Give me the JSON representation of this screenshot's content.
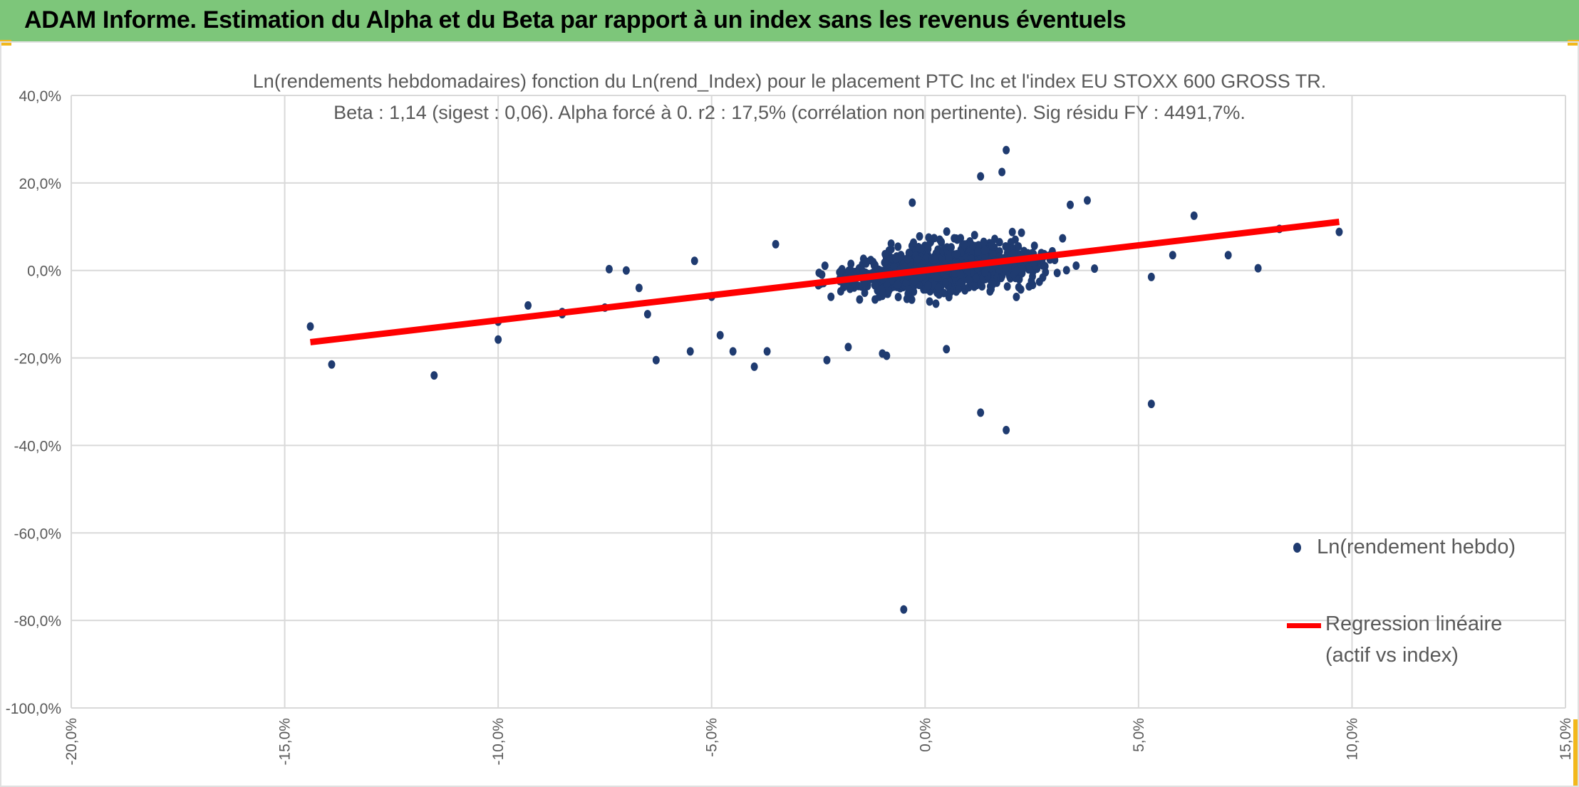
{
  "banner": {
    "title": "ADAM Informe. Estimation du Alpha et du Beta par rapport à un index sans les revenus éventuels",
    "bg_color": "#7dc67a",
    "corner_color": "#f2b81c"
  },
  "chart_data": {
    "type": "scatter",
    "title": "Ln(rendements hebdomadaires) fonction du Ln(rend_Index) pour le placement PTC Inc et l'index EU STOXX 600 GROSS TR.",
    "subtitle": "Beta : 1,14 (sigest : 0,06). Alpha forcé à 0. r2 : 17,5% (corrélation non pertinente). Sig résidu FY : 4491,7%.",
    "xlabel": "",
    "ylabel": "",
    "xlim": [
      -0.2,
      0.15
    ],
    "ylim": [
      -1.0,
      0.4
    ],
    "x_ticks": [
      -0.2,
      -0.15,
      -0.1,
      -0.05,
      0.0,
      0.05,
      0.1,
      0.15
    ],
    "x_tick_labels": [
      "-20,0%",
      "-15,0%",
      "-10,0%",
      "-5,0%",
      "0,0%",
      "5,0%",
      "10,0%",
      "15,0%"
    ],
    "y_ticks": [
      0.4,
      0.2,
      0.0,
      -0.2,
      -0.4,
      -0.6,
      -0.8,
      -1.0
    ],
    "y_tick_labels": [
      "40,0%",
      "20,0%",
      "0,0%",
      "-20,0%",
      "-40,0%",
      "-60,0%",
      "-80,0%",
      "-100,0%"
    ],
    "grid": true,
    "legend_position": "right",
    "series": [
      {
        "name": "Ln(rendement hebdo)",
        "kind": "scatter",
        "color": "#1f3b70",
        "notable_points": [
          [
            -0.144,
            -0.128
          ],
          [
            -0.139,
            -0.215
          ],
          [
            -0.115,
            -0.24
          ],
          [
            -0.1,
            -0.158
          ],
          [
            -0.1,
            -0.117
          ],
          [
            -0.093,
            -0.08
          ],
          [
            -0.085,
            -0.095
          ],
          [
            -0.085,
            -0.1
          ],
          [
            -0.074,
            0.003
          ],
          [
            -0.075,
            -0.085
          ],
          [
            -0.07,
            0.0
          ],
          [
            -0.067,
            -0.04
          ],
          [
            -0.063,
            -0.205
          ],
          [
            -0.065,
            -0.1
          ],
          [
            -0.055,
            -0.185
          ],
          [
            -0.054,
            0.022
          ],
          [
            -0.05,
            -0.06
          ],
          [
            -0.048,
            -0.148
          ],
          [
            -0.045,
            -0.185
          ],
          [
            -0.04,
            -0.22
          ],
          [
            -0.037,
            -0.185
          ],
          [
            -0.035,
            0.06
          ],
          [
            -0.023,
            -0.205
          ],
          [
            -0.018,
            -0.175
          ],
          [
            -0.01,
            -0.19
          ],
          [
            -0.009,
            -0.195
          ],
          [
            -0.005,
            -0.775
          ],
          [
            -0.003,
            0.155
          ],
          [
            0.005,
            -0.18
          ],
          [
            0.013,
            -0.325
          ],
          [
            0.013,
            0.215
          ],
          [
            0.018,
            0.225
          ],
          [
            0.019,
            0.275
          ],
          [
            0.019,
            -0.365
          ],
          [
            0.034,
            0.15
          ],
          [
            0.038,
            0.16
          ],
          [
            0.053,
            -0.305
          ],
          [
            0.053,
            -0.015
          ],
          [
            0.058,
            0.035
          ],
          [
            0.063,
            0.125
          ],
          [
            0.071,
            0.035
          ],
          [
            0.078,
            0.005
          ],
          [
            0.083,
            0.095
          ],
          [
            0.097,
            0.088
          ]
        ],
        "cluster": {
          "description": "dense cloud of weekly returns",
          "x_range": [
            -0.035,
            0.045
          ],
          "y_range": [
            -0.12,
            0.12
          ],
          "center": [
            0.005,
            0.005
          ],
          "approx_count": 1100
        }
      },
      {
        "name": "Regression linéaire (actif vs index)",
        "kind": "line",
        "color": "#ff0000",
        "slope": 1.14,
        "intercept": 0,
        "x": [
          -0.144,
          0.097
        ],
        "y": [
          -0.164,
          0.111
        ]
      }
    ],
    "legend": [
      {
        "label": "Ln(rendement hebdo)"
      },
      {
        "label_line1": "Regression linéaire",
        "label_line2": "(actif vs index)"
      }
    ]
  }
}
